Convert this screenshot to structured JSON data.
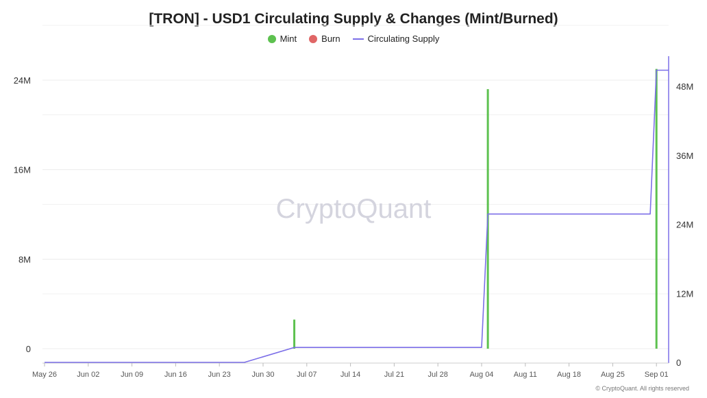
{
  "chart_data": {
    "type": "bar+line",
    "title": "[TRON] - USD1 Circulating Supply & Changes (Mint/Burned)",
    "x_tick_labels": [
      "May 26",
      "Jun 02",
      "Jun 09",
      "Jun 16",
      "Jun 23",
      "Jun 30",
      "Jul 07",
      "Jul 14",
      "Jul 21",
      "Jul 28",
      "Aug 04",
      "Aug 11",
      "Aug 18",
      "Aug 25",
      "Sep 01"
    ],
    "y_left": {
      "ticks": [
        "0",
        "8M",
        "16M",
        "24M"
      ],
      "range": [
        0,
        24000000
      ]
    },
    "y_right": {
      "ticks": [
        "0",
        "12M",
        "24M",
        "36M",
        "48M"
      ],
      "range": [
        0,
        48000000
      ]
    },
    "legend_position": "top-center",
    "series": [
      {
        "name": "Mint",
        "kind": "bar",
        "axis": "left",
        "color": "#5dc14f",
        "points": [
          {
            "date": "2025-07-05",
            "value": 2600000
          },
          {
            "date": "2025-08-05",
            "value": 23200000
          },
          {
            "date": "2025-09-01",
            "value": 25000000
          }
        ]
      },
      {
        "name": "Burn",
        "kind": "bar",
        "axis": "left",
        "color": "#e06666",
        "points": []
      },
      {
        "name": "Circulating Supply",
        "kind": "line",
        "axis": "right",
        "color": "#7b6ee8",
        "points": [
          {
            "date": "2025-05-26",
            "value": 0
          },
          {
            "date": "2025-06-27",
            "value": 0
          },
          {
            "date": "2025-07-05",
            "value": 2600000
          },
          {
            "date": "2025-08-04",
            "value": 2600000
          },
          {
            "date": "2025-08-05",
            "value": 25800000
          },
          {
            "date": "2025-08-31",
            "value": 25800000
          },
          {
            "date": "2025-09-01",
            "value": 50800000
          },
          {
            "date": "2025-09-03",
            "value": 50800000
          }
        ]
      }
    ]
  },
  "watermark": "CryptoQuant",
  "copyright": "© CryptoQuant. All rights reserved"
}
